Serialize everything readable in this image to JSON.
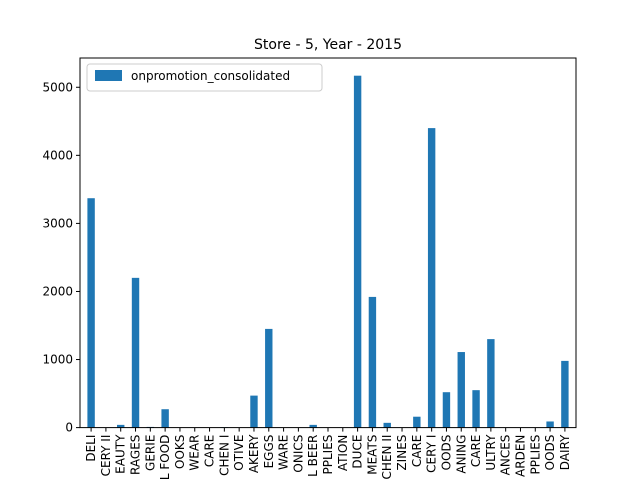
{
  "chart_data": {
    "type": "bar",
    "title": "Store - 5, Year - 2015",
    "xlabel": "",
    "ylabel": "",
    "ylim": [
      0,
      5430
    ],
    "yticks": [
      0,
      1000,
      2000,
      3000,
      4000,
      5000
    ],
    "grid": false,
    "legend_position": "top-left",
    "bar_color": "#1f77b4",
    "categories": [
      "DELI",
      "CERY II",
      "EAUTY",
      "RAGES",
      "GERIE",
      "L FOOD",
      "OOKS",
      "WEAR",
      "CARE",
      "CHEN I",
      "OTIVE",
      "AKERY",
      "EGGS",
      "WARE",
      "ONICS",
      "L BEER",
      "PPLIES",
      "ATION",
      "DUCE",
      "MEATS",
      "CHEN II",
      "ZINES",
      "CARE",
      "CERY I",
      "OODS",
      "ANING",
      "CARE",
      "ULTRY",
      "ANCES",
      "ARDEN",
      "PPLIES",
      "OODS",
      "DAIRY"
    ],
    "series": [
      {
        "name": "onpromotion_consolidated",
        "values": [
          3370,
          0,
          40,
          2200,
          10,
          270,
          0,
          0,
          0,
          5,
          0,
          470,
          1450,
          0,
          0,
          40,
          0,
          0,
          5170,
          1920,
          70,
          0,
          160,
          4400,
          520,
          1110,
          550,
          1300,
          0,
          0,
          0,
          90,
          980
        ]
      }
    ]
  }
}
